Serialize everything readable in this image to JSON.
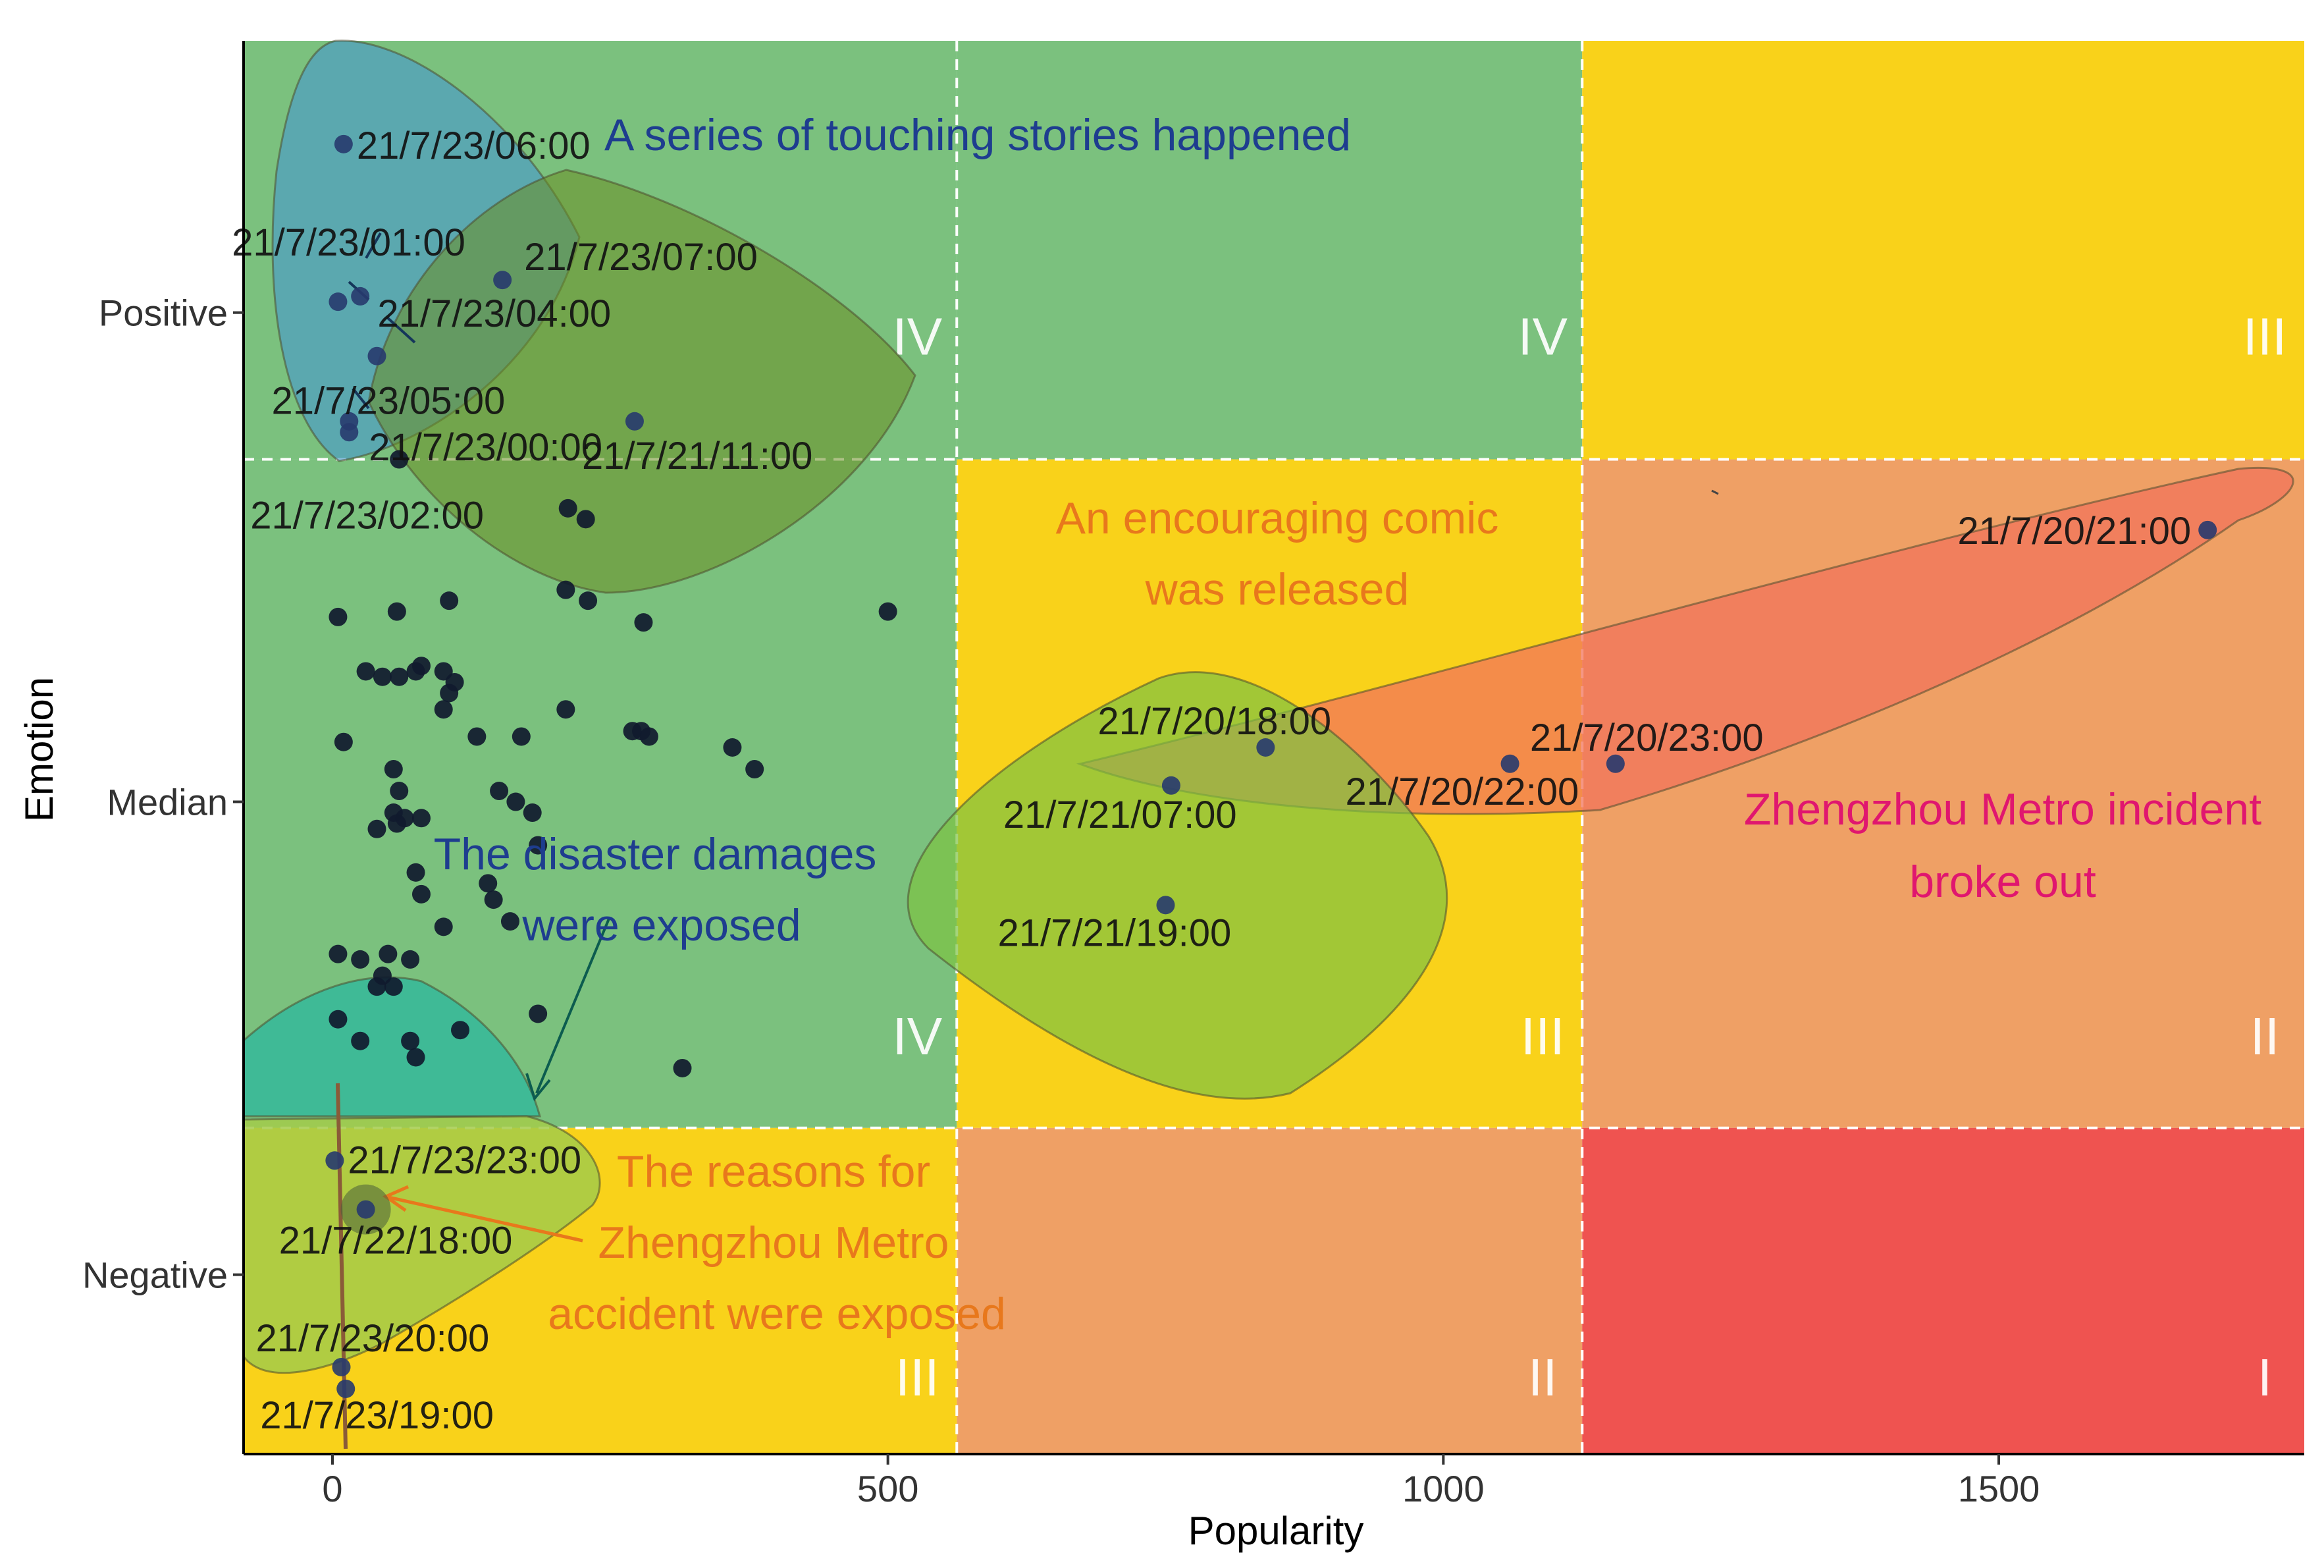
{
  "chart_data": {
    "type": "scatter",
    "xlabel": "Popularity",
    "ylabel": "Emotion",
    "xlim": [
      -80,
      1775
    ],
    "ylim": [
      0,
      2.6
    ],
    "x_ticks": [
      {
        "value": 0,
        "label": "0"
      },
      {
        "value": 500,
        "label": "500"
      },
      {
        "value": 1000,
        "label": "1000"
      },
      {
        "value": 1500,
        "label": "1500"
      }
    ],
    "y_ticks": [
      {
        "value": 2.1,
        "label": "Positive"
      },
      {
        "value": 1.2,
        "label": "Median"
      },
      {
        "value": 0.33,
        "label": "Negative"
      }
    ],
    "grid": false,
    "zone_x_breaks": [
      562,
      1125
    ],
    "zone_y_breaks": [
      0.6,
      1.83
    ],
    "zone_colors": {
      "I": "#EF5350",
      "II": "#EFA065",
      "III": "#F9D21A",
      "IV": "#7BC17E"
    },
    "zones": [
      {
        "col": 0,
        "row": 2,
        "level": "IV"
      },
      {
        "col": 1,
        "row": 2,
        "level": "IV"
      },
      {
        "col": 2,
        "row": 2,
        "level": "III"
      },
      {
        "col": 0,
        "row": 1,
        "level": "IV"
      },
      {
        "col": 1,
        "row": 1,
        "level": "III"
      },
      {
        "col": 2,
        "row": 1,
        "level": "II"
      },
      {
        "col": 0,
        "row": 0,
        "level": "III"
      },
      {
        "col": 1,
        "row": 0,
        "level": "II"
      },
      {
        "col": 2,
        "row": 0,
        "level": "I"
      }
    ],
    "labeled_points": [
      {
        "label": "21/7/23/06:00",
        "x": 10,
        "y": 2.41
      },
      {
        "label": "21/7/23/01:00",
        "x": 25,
        "y": 2.13
      },
      {
        "label": "21/7/23/07:00",
        "x": 153,
        "y": 2.16
      },
      {
        "label": "21/7/23/04:00",
        "x": 5,
        "y": 2.12
      },
      {
        "label": "21/7/23/05:00",
        "x": 40,
        "y": 2.02
      },
      {
        "label": "21/7/23/00:00",
        "x": 15,
        "y": 1.9
      },
      {
        "label": "21/7/21/11:00",
        "x": 272,
        "y": 1.9
      },
      {
        "label": "21/7/23/02:00",
        "x": 15,
        "y": 1.88
      },
      {
        "label": "21/7/20/21:00",
        "x": 1688,
        "y": 1.7
      },
      {
        "label": "21/7/20/18:00",
        "x": 840,
        "y": 1.3
      },
      {
        "label": "21/7/21/07:00",
        "x": 755,
        "y": 1.23
      },
      {
        "label": "21/7/20/23:00",
        "x": 1155,
        "y": 1.27
      },
      {
        "label": "21/7/20/22:00",
        "x": 1060,
        "y": 1.27
      },
      {
        "label": "21/7/21/19:00",
        "x": 750,
        "y": 1.01
      },
      {
        "label": "21/7/23/23:00",
        "x": 2,
        "y": 0.54
      },
      {
        "label": "21/7/22/18:00",
        "x": 30,
        "y": 0.45
      },
      {
        "label": "21/7/23/20:00",
        "x": 8,
        "y": 0.16
      },
      {
        "label": "21/7/23/19:00",
        "x": 12,
        "y": 0.12
      }
    ],
    "other_points": {
      "x": [
        60,
        212,
        228,
        5,
        58,
        105,
        500,
        210,
        230,
        280,
        30,
        45,
        60,
        75,
        80,
        100,
        110,
        105,
        100,
        130,
        170,
        210,
        270,
        278,
        285,
        360,
        380,
        10,
        55,
        60,
        55,
        58,
        65,
        80,
        150,
        165,
        180,
        40,
        75,
        185,
        80,
        140,
        145,
        100,
        160,
        5,
        25,
        50,
        70,
        45,
        55,
        40,
        5,
        25,
        70,
        75,
        115,
        185,
        315
      ],
      "y": [
        1.83,
        1.74,
        1.72,
        1.54,
        1.55,
        1.57,
        1.55,
        1.59,
        1.57,
        1.53,
        1.44,
        1.43,
        1.43,
        1.44,
        1.45,
        1.44,
        1.42,
        1.4,
        1.37,
        1.32,
        1.32,
        1.37,
        1.33,
        1.33,
        1.32,
        1.3,
        1.26,
        1.31,
        1.26,
        1.22,
        1.18,
        1.16,
        1.17,
        1.17,
        1.22,
        1.2,
        1.18,
        1.15,
        1.07,
        1.12,
        1.03,
        1.05,
        1.02,
        0.97,
        0.98,
        0.92,
        0.91,
        0.92,
        0.91,
        0.88,
        0.86,
        0.86,
        0.8,
        0.76,
        0.76,
        0.73,
        0.78,
        0.81,
        0.71
      ]
    },
    "highlight_regions": [
      {
        "name": "touching-stories",
        "color": "#4A9BC9",
        "opacity": 0.65
      },
      {
        "name": "comic",
        "color": "#6B8E23",
        "opacity": 0.55
      },
      {
        "name": "metro-incident",
        "color": "#F2745B",
        "opacity": 0.75
      },
      {
        "name": "exposed-region-green",
        "color": "#7DC243",
        "opacity": 0.7
      },
      {
        "name": "disaster",
        "color": "#17B6A6",
        "opacity": 0.6
      },
      {
        "name": "reasons",
        "color": "#A3CB4A",
        "opacity": 0.85
      }
    ],
    "annotations": [
      {
        "text": "A series of touching stories happened",
        "color": "#1E3D8F"
      },
      {
        "text": "An encouraging comic",
        "color": "#E8781C"
      },
      {
        "text": "was released",
        "color": "#E8781C"
      },
      {
        "text": "Zhengzhou Metro incident",
        "color": "#E0166F"
      },
      {
        "text": "broke out",
        "color": "#E0166F"
      },
      {
        "text": "The disaster damages",
        "color": "#1E3D8F"
      },
      {
        "text": "were exposed",
        "color": "#1E3D8F"
      },
      {
        "text": "The reasons for",
        "color": "#E8781C"
      },
      {
        "text": "Zhengzhou Metro",
        "color": "#E8781C"
      },
      {
        "text": "accident were exposed",
        "color": "#E8781C"
      }
    ]
  }
}
